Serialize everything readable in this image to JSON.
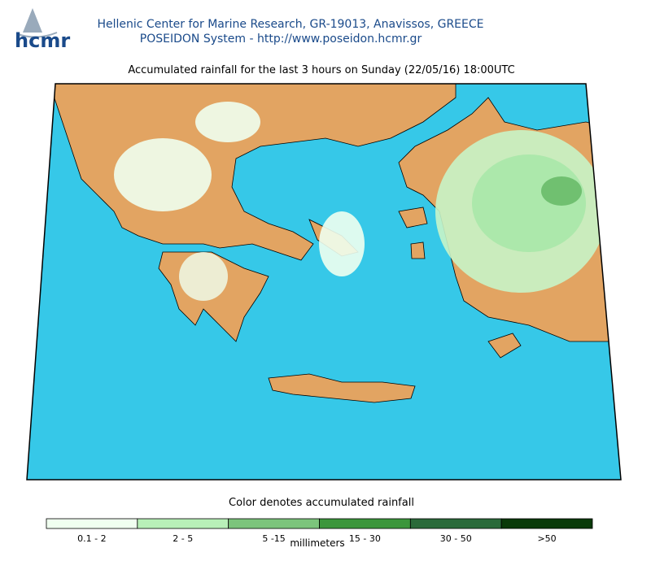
{
  "header": {
    "logo": "hcmr",
    "line1": "Hellenic Center for Marine Research, GR-19013, Anavissos, GREECE",
    "line2": "POSEIDON System - http://www.poseidon.hcmr.gr"
  },
  "map": {
    "title": "Accumulated rainfall for the last 3 hours on Sunday (22/05/16) 18:00UTC"
  },
  "legend": {
    "title": "Color denotes accumulated rainfall",
    "unit": "millimeters",
    "classes": [
      {
        "label": "0.1 - 2",
        "color": "#f0fff0"
      },
      {
        "label": "2 - 5",
        "color": "#b8f0b8"
      },
      {
        "label": "5 -15",
        "color": "#7cc47c"
      },
      {
        "label": "15 - 30",
        "color": "#3c963c"
      },
      {
        "label": "30 - 50",
        "color": "#2a6a3a"
      },
      {
        "label": ">50",
        "color": "#0a3a0a"
      }
    ]
  }
}
